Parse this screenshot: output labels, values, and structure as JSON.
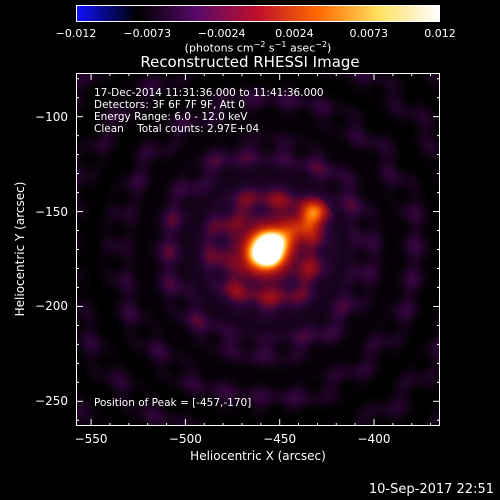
{
  "colorbar": {
    "min": -0.012,
    "max": 0.012,
    "tick_labels": [
      "−0.012",
      "−0.0073",
      "−0.0024",
      "0.0024",
      "0.0073",
      "0.012"
    ],
    "tick_values": [
      -0.012,
      -0.0073,
      -0.0024,
      0.0024,
      0.0073,
      0.012
    ],
    "units_prefix": "(photons cm",
    "units_exp1": "−2",
    "units_mid1": " s",
    "units_exp2": "−1",
    "units_mid2": " asec",
    "units_exp3": "−2",
    "units_suffix": ")",
    "colors": [
      "#1010ff",
      "#000000",
      "#5a0a6a",
      "#c0102a",
      "#ff6a00",
      "#ffe060",
      "#ffffff"
    ]
  },
  "chart_data": {
    "type": "heatmap",
    "title": "Reconstructed RHESSI Image",
    "xlabel": "Heliocentric X (arcsec)",
    "ylabel": "Heliocentric Y (arcsec)",
    "xlim": [
      -558,
      -365
    ],
    "ylim": [
      -263,
      -77
    ],
    "xticks": [
      -550,
      -500,
      -450,
      -400
    ],
    "xtick_labels": [
      "−550",
      "−500",
      "−450",
      "−400"
    ],
    "yticks": [
      -100,
      -150,
      -200,
      -250
    ],
    "ytick_labels": [
      "−100",
      "−150",
      "−200",
      "−250"
    ],
    "peak": {
      "x": -457,
      "y": -170
    },
    "secondary_source": {
      "x": -431,
      "y": -150
    },
    "annotations": {
      "time_range": "17-Dec-2014 11:31:36.000 to 11:41:36.000",
      "detectors": "Detectors: 3F 6F 7F 9F, Att 0",
      "energy": "Energy Range: 6.0 - 12.0 keV",
      "clean": "Clean    Total counts: 2.97E+04",
      "peak_position": "Position of Peak = [-457,-170]"
    }
  },
  "timestamp": "10-Sep-2017 22:51"
}
